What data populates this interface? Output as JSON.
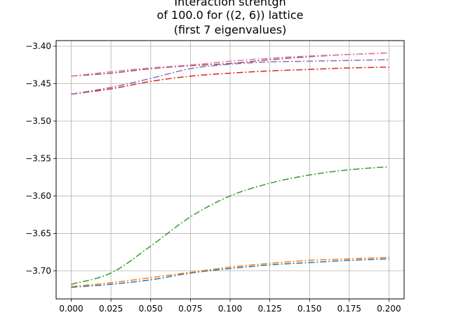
{
  "chart_data": {
    "type": "line",
    "title_lines": [
      "Interaction strentgh",
      "of 100.0 for ((2, 6)) lattice",
      "(first 7 eigenvalues)"
    ],
    "xlabel": "",
    "ylabel": "",
    "xlim": [
      -0.0095,
      0.2095
    ],
    "ylim": [
      -3.7375,
      -3.3925
    ],
    "xticks": [
      0.0,
      0.025,
      0.05,
      0.075,
      0.1,
      0.125,
      0.15,
      0.175,
      0.2
    ],
    "xtick_labels": [
      "0.000",
      "0.025",
      "0.050",
      "0.075",
      "0.100",
      "0.125",
      "0.150",
      "0.175",
      "0.200"
    ],
    "yticks": [
      -3.7,
      -3.65,
      -3.6,
      -3.55,
      -3.5,
      -3.45,
      -3.4
    ],
    "ytick_labels": [
      "−3.70",
      "−3.65",
      "−3.60",
      "−3.55",
      "−3.50",
      "−3.45",
      "−3.40"
    ],
    "grid": true,
    "line_style": "dash-dot",
    "x": [
      0.0,
      0.025,
      0.05,
      0.075,
      0.1,
      0.125,
      0.15,
      0.175,
      0.2
    ],
    "series": [
      {
        "color": "#1f77b4",
        "values": [
          -3.722,
          -3.718,
          -3.712,
          -3.703,
          -3.697,
          -3.692,
          -3.689,
          -3.686,
          -3.684
        ]
      },
      {
        "color": "#ff7f0e",
        "values": [
          -3.721,
          -3.716,
          -3.709,
          -3.702,
          -3.695,
          -3.69,
          -3.686,
          -3.684,
          -3.682
        ]
      },
      {
        "color": "#2ca02c",
        "values": [
          -3.718,
          -3.703,
          -3.667,
          -3.628,
          -3.6,
          -3.583,
          -3.572,
          -3.565,
          -3.561
        ]
      },
      {
        "color": "#d62728",
        "values": [
          -3.464,
          -3.457,
          -3.447,
          -3.44,
          -3.436,
          -3.433,
          -3.431,
          -3.429,
          -3.428
        ]
      },
      {
        "color": "#9467bd",
        "values": [
          -3.464,
          -3.455,
          -3.443,
          -3.43,
          -3.424,
          -3.421,
          -3.42,
          -3.419,
          -3.418
        ]
      },
      {
        "color": "#8c564b",
        "values": [
          -3.44,
          -3.436,
          -3.43,
          -3.426,
          -3.423,
          -3.418,
          -3.414,
          -3.411,
          -3.409
        ]
      },
      {
        "color": "#e377c2",
        "values": [
          -3.44,
          -3.434,
          -3.429,
          -3.425,
          -3.42,
          -3.416,
          -3.413,
          -3.411,
          -3.409
        ]
      }
    ]
  }
}
